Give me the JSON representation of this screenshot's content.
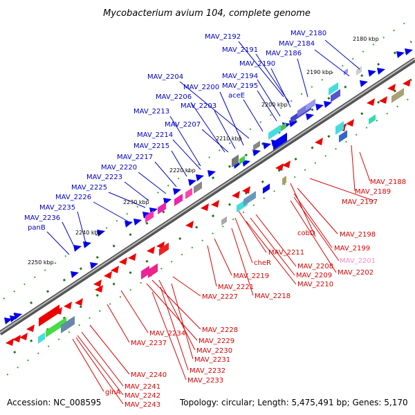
{
  "title": "Mycobacterium avium 104, complete genome",
  "footer": {
    "accession": "Accession: NC_008595",
    "topology": "Topology: circular; Length: 5,475,491 bp; Genes: 5,170"
  },
  "colors": {
    "upper_label": "#0000cc",
    "lower_label": "#dd0000",
    "highlight_label": "#ff88cc",
    "backbone": "#888888"
  },
  "ticks": [
    "2180 kbp",
    "2190 kbp",
    "2200 kbp",
    "2210 kbp",
    "2220 kbp",
    "2230 kbp",
    "2240 kbp",
    "2250 kbp"
  ],
  "upper_labels": [
    "MAV_2192",
    "MAV_2180",
    "MAV_2191",
    "MAV_2184",
    "MAV_2186",
    "MAV_2190",
    "MAV_2204",
    "MAV_2194",
    "MAV_2200",
    "MAV_2195",
    "MAV_2206",
    "aceE",
    "MAV_2203",
    "MAV_2213",
    "MAV_2207",
    "MAV_2214",
    "MAV_2215",
    "MAV_2217",
    "MAV_2220",
    "MAV_2223",
    "MAV_2225",
    "MAV_2226",
    "MAV_2235",
    "MAV_2236",
    "panB"
  ],
  "lower_labels": [
    "MAV_2188",
    "MAV_2189",
    "MAV_2197",
    "cobD",
    "MAV_2198",
    "MAV_2199",
    "MAV_2201",
    "MAV_2202",
    "MAV_2211",
    "cheR",
    "MAV_2208",
    "MAV_2209",
    "MAV_2210",
    "MAV_2219",
    "MAV_2221",
    "MAV_2218",
    "MAV_2227",
    "MAV_2228",
    "MAV_2229",
    "MAV_2230",
    "MAV_2234",
    "MAV_2231",
    "MAV_2237",
    "MAV_2232",
    "MAV_2233",
    "MAV_2240",
    "glnA",
    "MAV_2241",
    "MAV_2242",
    "MAV_2243"
  ]
}
